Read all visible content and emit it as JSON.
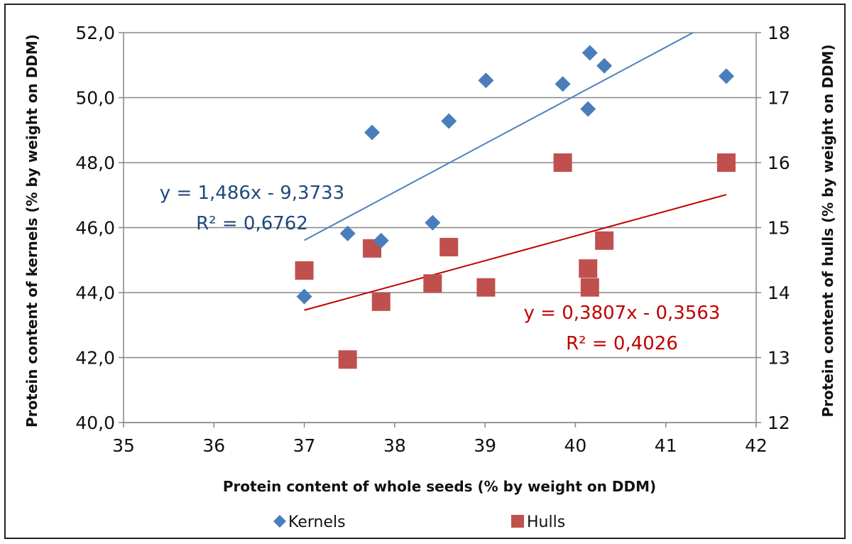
{
  "chart_data": {
    "type": "scatter",
    "title": "",
    "xlabel": "Protein content of whole seeds (% by weight on DDM)",
    "ylabel_left": "Protein content of kernels (% by weight on DDM)",
    "ylabel_right": "Protein content of hulls (% by weight on DDM)",
    "xlim": [
      35,
      42
    ],
    "ylim_left": [
      40,
      52
    ],
    "ylim_right": [
      12,
      18
    ],
    "x_ticks": [
      "35",
      "36",
      "37",
      "38",
      "39",
      "40",
      "41",
      "42"
    ],
    "y_left_ticks": [
      "40,0",
      "42,0",
      "44,0",
      "46,0",
      "48,0",
      "50,0",
      "52,0"
    ],
    "y_right_ticks": [
      "12",
      "13",
      "14",
      "15",
      "16",
      "17",
      "18"
    ],
    "grid": true,
    "legend_position": "bottom",
    "colors": {
      "kernels": "#4a7ebb",
      "hulls": "#c0504d",
      "kernels_trend": "#4f81bd",
      "hulls_trend": "#c00000",
      "kernels_eq": "#1f497d",
      "hulls_eq": "#c00000"
    },
    "series": [
      {
        "name": "Kernels",
        "axis": "left",
        "marker": "diamond",
        "x": [
          37.0,
          37.48,
          37.75,
          37.85,
          38.42,
          38.6,
          39.01,
          39.86,
          40.14,
          40.16,
          40.32,
          41.67
        ],
        "y": [
          43.88,
          45.82,
          48.93,
          45.6,
          46.15,
          49.28,
          50.53,
          50.42,
          49.65,
          51.38,
          50.98,
          50.66
        ],
        "trendline": {
          "slope": 1.486,
          "intercept": -9.3733,
          "x_range": [
            37.0,
            41.3
          ]
        },
        "equation_label": "y = 1,486x - 9,3733",
        "r2_label": "R² = 0,6762"
      },
      {
        "name": "Hulls",
        "axis": "right",
        "marker": "square",
        "x": [
          37.0,
          37.48,
          37.75,
          37.85,
          38.42,
          38.6,
          39.01,
          39.86,
          40.14,
          40.16,
          40.32,
          41.67
        ],
        "y": [
          14.34,
          12.97,
          14.68,
          13.86,
          14.14,
          14.7,
          14.08,
          16.0,
          14.37,
          14.08,
          14.8,
          16.0
        ],
        "trendline": {
          "slope": 0.3807,
          "intercept": -0.3563,
          "x_range": [
            37.0,
            41.67
          ]
        },
        "equation_label": "y = 0,3807x - 0,3563",
        "r2_label": "R² = 0,4026"
      }
    ]
  }
}
